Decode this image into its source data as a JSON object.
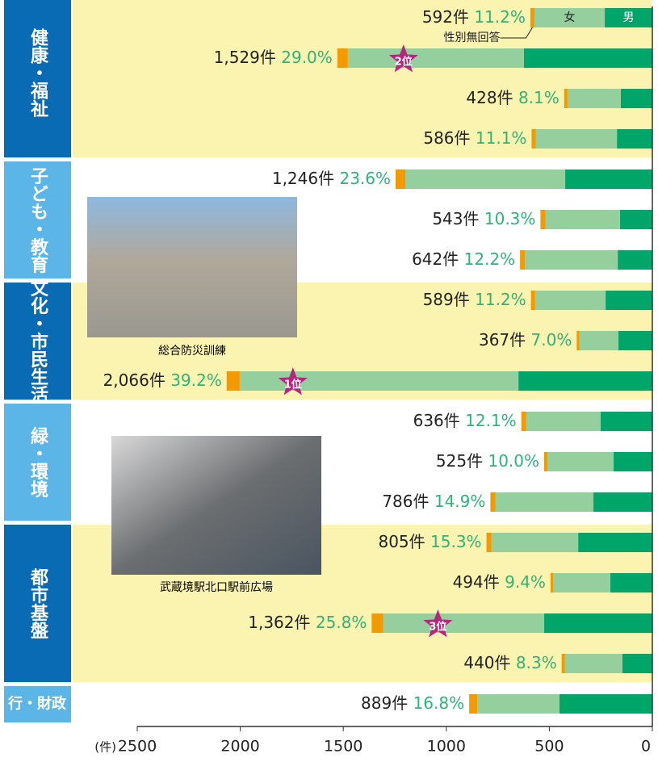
{
  "chart_data": {
    "type": "stacked-barh",
    "groups": [
      {
        "name": "健康・福祉",
        "rows": 4
      },
      {
        "name": "子ども・教育",
        "rows": 3
      },
      {
        "name": "文化・市民生活",
        "rows": 3
      },
      {
        "name": "緑・環境",
        "rows": 3
      },
      {
        "name": "都市基盤",
        "rows": 4
      },
      {
        "name": "行・財政",
        "rows": 1
      }
    ],
    "series": [
      {
        "name": "性別無回答",
        "color": "#f29a00",
        "values": [
          20,
          51,
          16,
          20,
          47,
          24,
          24,
          20,
          12,
          63,
          24,
          16,
          24,
          24,
          12,
          55,
          16,
          39
        ]
      },
      {
        "name": "女",
        "color": "#96cf9e",
        "values": [
          341,
          855,
          259,
          394,
          776,
          362,
          450,
          342,
          190,
          1353,
          361,
          321,
          476,
          421,
          278,
          782,
          279,
          399
        ]
      },
      {
        "name": "男",
        "color": "#00a56a",
        "values": [
          231,
          623,
          153,
          172,
          423,
          157,
          168,
          227,
          165,
          650,
          251,
          188,
          286,
          360,
          204,
          525,
          145,
          451
        ]
      }
    ],
    "totals": [
      592,
      1529,
      428,
      586,
      1246,
      543,
      642,
      589,
      367,
      2066,
      636,
      525,
      786,
      805,
      494,
      1362,
      440,
      889
    ],
    "total_labels": [
      "592件",
      "1,529件",
      "428件",
      "586件",
      "1,246件",
      "543件",
      "642件",
      "589件",
      "367件",
      "2,066件",
      "636件",
      "525件",
      "786件",
      "805件",
      "494件",
      "1,362件",
      "440件",
      "889件"
    ],
    "percents": [
      11.2,
      29.0,
      8.1,
      11.1,
      23.6,
      10.3,
      12.2,
      11.2,
      7.0,
      39.2,
      12.1,
      10.0,
      14.9,
      15.3,
      9.4,
      25.8,
      8.3,
      16.8
    ],
    "percent_labels": [
      "11.2%",
      "29.0%",
      "8.1%",
      "11.1%",
      "23.6%",
      "10.3%",
      "12.2%",
      "11.2%",
      "7.0%",
      "39.2%",
      "12.1%",
      "10.0%",
      "14.9%",
      "15.3%",
      "9.4%",
      "25.8%",
      "8.3%",
      "16.8%"
    ],
    "rank_labels": [
      null,
      "2位",
      null,
      null,
      null,
      null,
      null,
      null,
      null,
      "1位",
      null,
      null,
      null,
      null,
      null,
      "3位",
      null,
      null
    ],
    "photo_captions": [
      "総合防災訓練",
      "武蔵境駅北口駅前広場"
    ],
    "xlabel": "(件)",
    "xlim": [
      2500,
      0
    ],
    "xticks": [
      2500,
      2000,
      1500,
      1000,
      500,
      0
    ]
  }
}
